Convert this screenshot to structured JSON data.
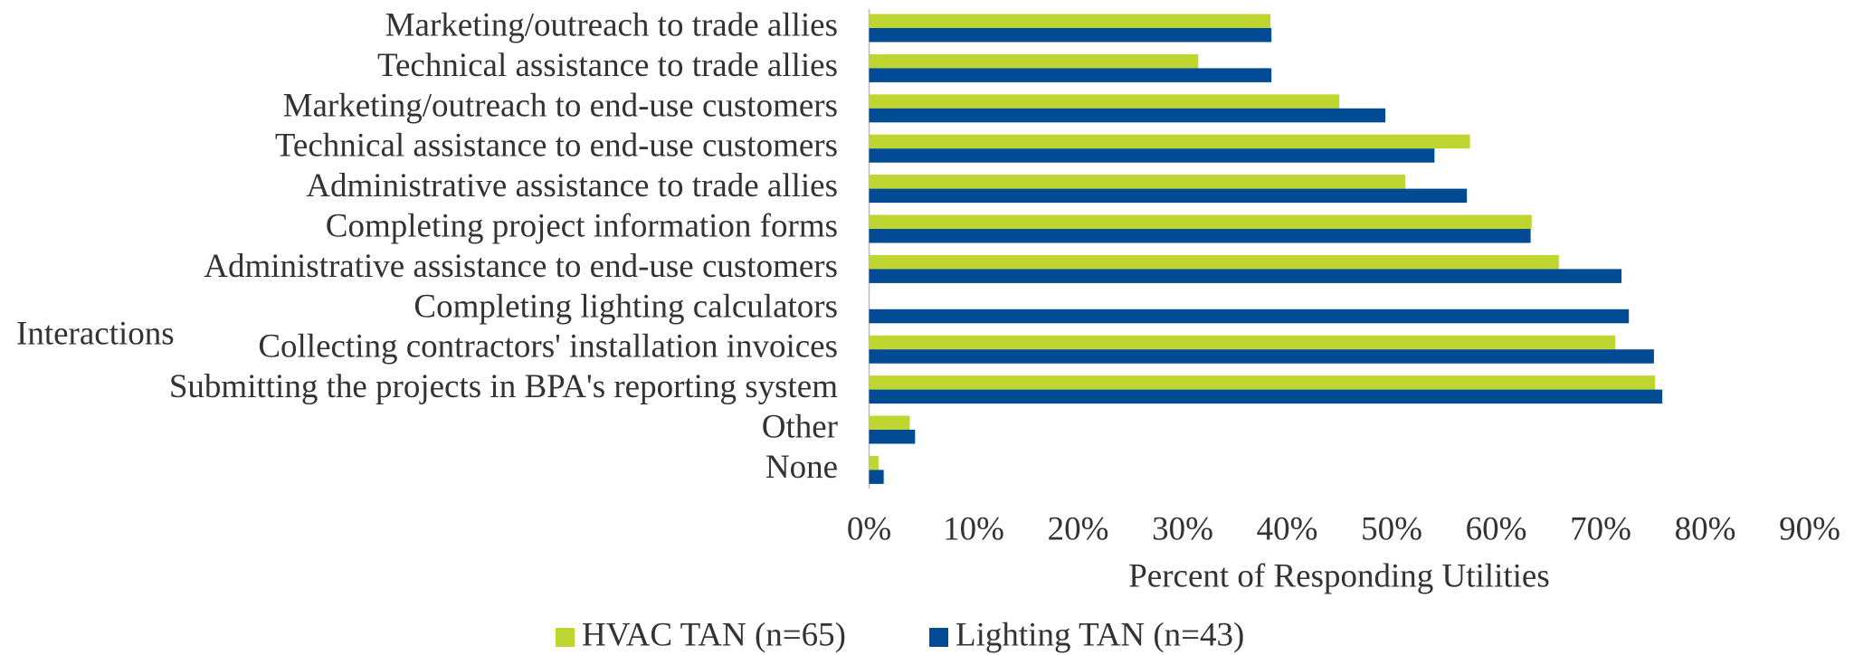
{
  "chart_data": {
    "type": "hbar",
    "ylabel": "Interactions",
    "xlabel": "Percent of Responding Utilities",
    "categories": [
      "Marketing/outreach to trade allies",
      "Technical assistance to trade allies",
      "Marketing/outreach to end-use customers",
      "Technical assistance to end-use customers",
      "Administrative assistance to trade allies",
      "Completing project information forms",
      "Administrative assistance to end-use customers",
      "Completing lighting calculators",
      "Collecting contractors' installation invoices",
      "Submitting the projects in BPA's reporting system",
      "Other",
      "None"
    ],
    "series": [
      {
        "name": "HVAC TAN (n=65)",
        "color": "#bfd630",
        "values": [
          38.4,
          31.5,
          45.0,
          57.5,
          51.3,
          63.4,
          66.0,
          null,
          71.4,
          75.2,
          3.9,
          0.9
        ]
      },
      {
        "name": "Lighting TAN (n=43)",
        "color": "#004b93",
        "values": [
          38.5,
          38.5,
          49.4,
          54.1,
          57.2,
          63.3,
          72.0,
          72.7,
          75.1,
          75.9,
          4.4,
          1.4
        ]
      }
    ],
    "xlim": [
      0,
      90
    ],
    "xticks": [
      {
        "value": 0,
        "label": "0%"
      },
      {
        "value": 10,
        "label": "10%"
      },
      {
        "value": 20,
        "label": "20%"
      },
      {
        "value": 30,
        "label": "30%"
      },
      {
        "value": 40,
        "label": "40%"
      },
      {
        "value": 50,
        "label": "50%"
      },
      {
        "value": 60,
        "label": "60%"
      },
      {
        "value": 70,
        "label": "70%"
      },
      {
        "value": 80,
        "label": "80%"
      },
      {
        "value": 90,
        "label": "90%"
      }
    ],
    "legend": "bottom"
  }
}
